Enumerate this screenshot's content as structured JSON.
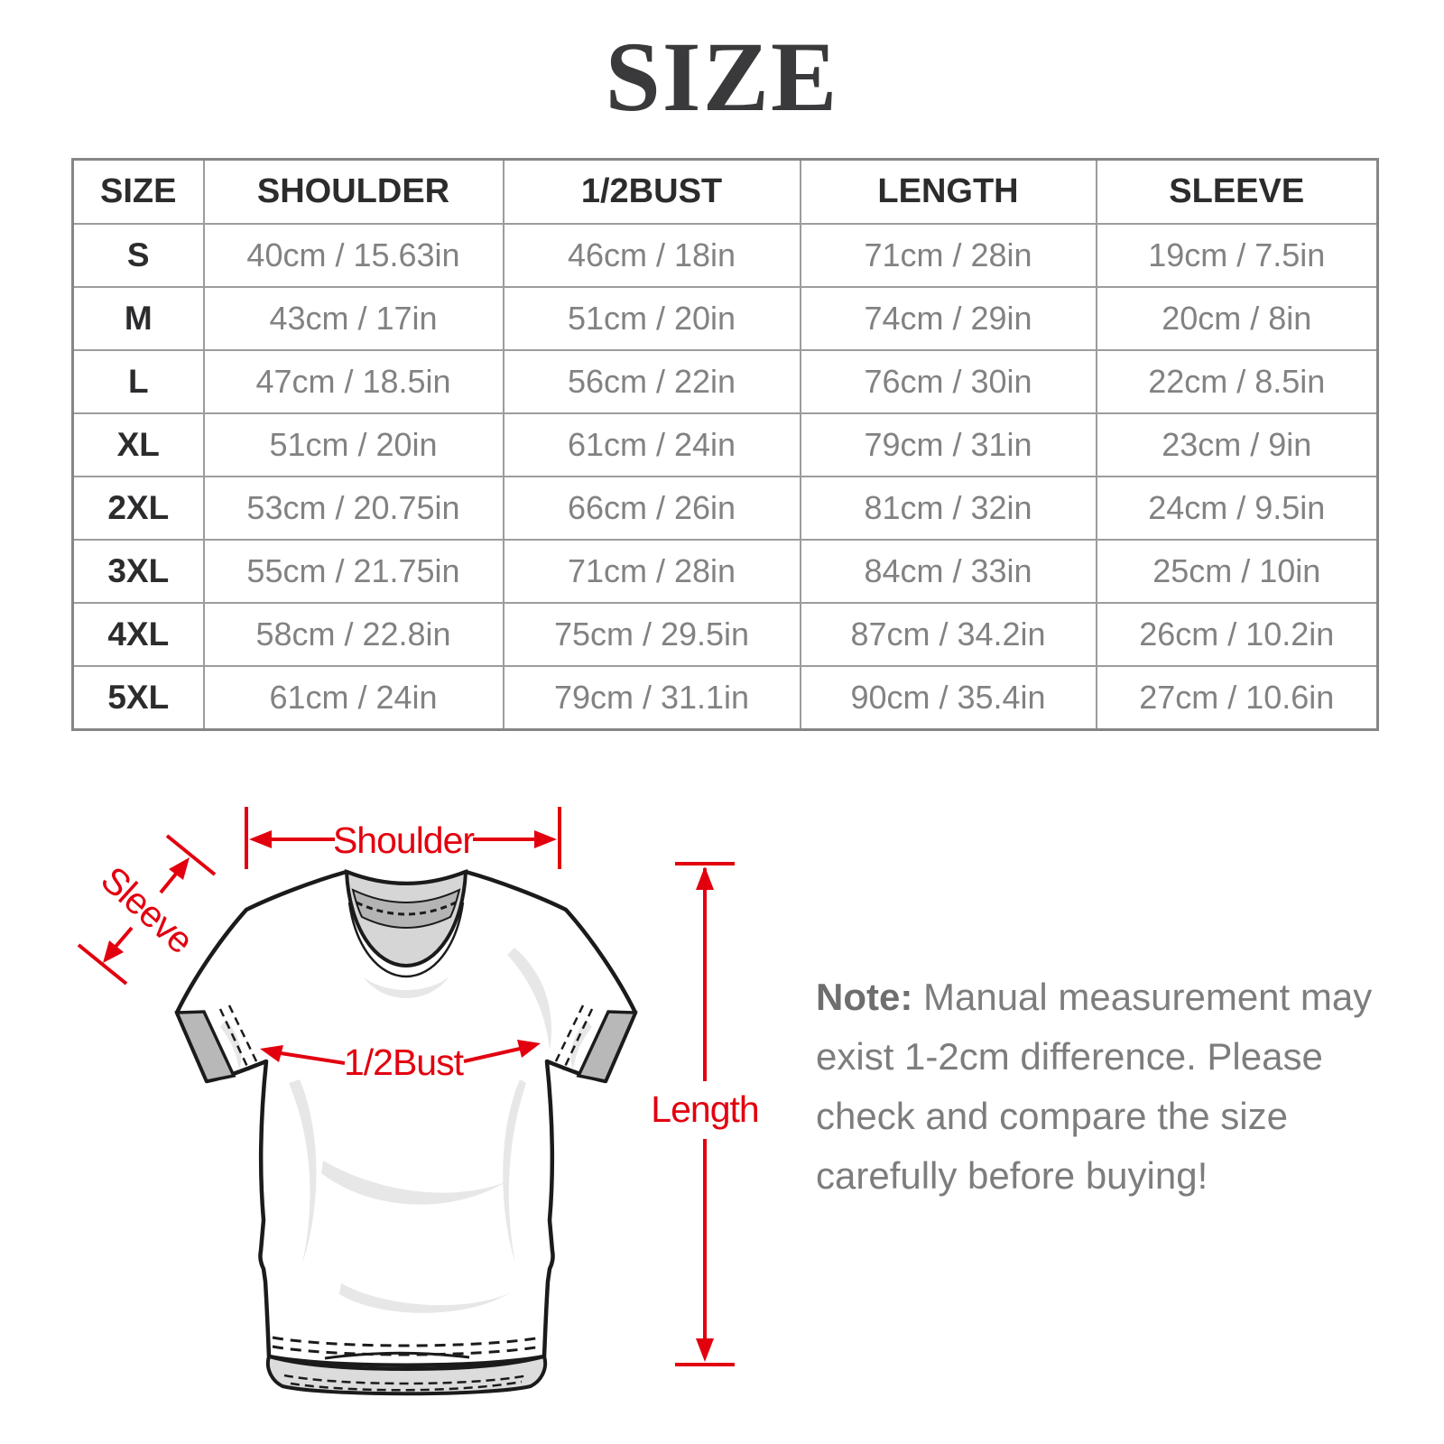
{
  "title": "SIZE",
  "table": {
    "headers": [
      "SIZE",
      "SHOULDER",
      "1/2BUST",
      "LENGTH",
      "SLEEVE"
    ],
    "rows": [
      [
        "S",
        "40cm / 15.63in",
        "46cm / 18in",
        "71cm / 28in",
        "19cm / 7.5in"
      ],
      [
        "M",
        "43cm / 17in",
        "51cm / 20in",
        "74cm / 29in",
        "20cm / 8in"
      ],
      [
        "L",
        "47cm / 18.5in",
        "56cm / 22in",
        "76cm / 30in",
        "22cm / 8.5in"
      ],
      [
        "XL",
        "51cm / 20in",
        "61cm / 24in",
        "79cm / 31in",
        "23cm / 9in"
      ],
      [
        "2XL",
        "53cm / 20.75in",
        "66cm / 26in",
        "81cm / 32in",
        "24cm / 9.5in"
      ],
      [
        "3XL",
        "55cm / 21.75in",
        "71cm / 28in",
        "84cm / 33in",
        "25cm / 10in"
      ],
      [
        "4XL",
        "58cm / 22.8in",
        "75cm / 29.5in",
        "87cm / 34.2in",
        "26cm / 10.2in"
      ],
      [
        "5XL",
        "61cm / 24in",
        "79cm / 31.1in",
        "90cm / 35.4in",
        "27cm / 10.6in"
      ]
    ]
  },
  "diagram": {
    "labels": {
      "shoulder": "Shoulder",
      "sleeve": "Sleeve",
      "bust": "1/2Bust",
      "length": "Length"
    },
    "accent_color": "#e2000f",
    "outline_color": "#1b1b1b"
  },
  "note": {
    "label": "Note:",
    "lines": [
      "Manual measurement may",
      "exist 1-2cm difference. Please",
      "check and compare the size",
      "carefully before buying!"
    ]
  }
}
